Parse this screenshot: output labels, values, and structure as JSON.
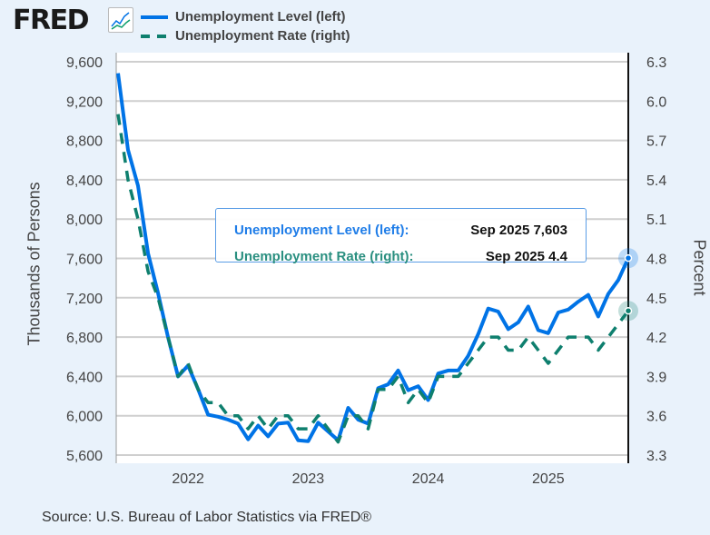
{
  "header": {
    "logo": "FRED",
    "logo_icon": "line-chart-icon"
  },
  "legend": [
    {
      "label": "Unemployment Level (left)",
      "color": "#0073e6",
      "style": "solid"
    },
    {
      "label": "Unemployment Rate (right)",
      "color": "#0e7f6e",
      "style": "dashed"
    }
  ],
  "tooltip": {
    "rows": [
      {
        "label": "Unemployment Level (left):",
        "value": "Sep 2025 7,603"
      },
      {
        "label": "Unemployment Rate (right):",
        "value": "Sep 2025 4.4"
      }
    ]
  },
  "source": "Source: U.S. Bureau of Labor Statistics via FRED®",
  "chart_data": {
    "type": "line",
    "x_start": "2021-06",
    "x_end": "2025-09",
    "frequency": "monthly",
    "x_ticks": [
      "2022",
      "2023",
      "2024",
      "2025"
    ],
    "ylabel_left": "Thousands of Persons",
    "ylabel_right": "Percent",
    "ylim_left": [
      5600,
      9600
    ],
    "ylim_right": [
      3.3,
      6.3
    ],
    "yticks_left": [
      "5,600",
      "6,000",
      "6,400",
      "6,800",
      "7,200",
      "7,600",
      "8,000",
      "8,400",
      "8,800",
      "9,200",
      "9,600"
    ],
    "yticks_right": [
      "3.3",
      "3.6",
      "3.9",
      "4.2",
      "4.5",
      "4.8",
      "5.1",
      "5.4",
      "5.7",
      "6.0",
      "6.3"
    ],
    "grid": true,
    "legend_placement": "top-left",
    "series": [
      {
        "name": "Unemployment Level (left)",
        "axis": "left",
        "color": "#0073e6",
        "values": [
          9484,
          8703,
          8339,
          7650,
          7246,
          6797,
          6400,
          6510,
          6270,
          6010,
          5990,
          5960,
          5920,
          5760,
          5900,
          5790,
          5920,
          5930,
          5750,
          5740,
          5930,
          5840,
          5750,
          6080,
          5960,
          5920,
          6280,
          6320,
          6460,
          6260,
          6300,
          6160,
          6430,
          6460,
          6460,
          6610,
          6830,
          7090,
          7060,
          6880,
          6950,
          7110,
          6870,
          6840,
          7050,
          7080,
          7160,
          7230,
          7010,
          7240,
          7380,
          7603
        ]
      },
      {
        "name": "Unemployment Rate (right)",
        "axis": "right",
        "color": "#0e7f6e",
        "values": [
          5.9,
          5.4,
          5.1,
          4.7,
          4.5,
          4.2,
          3.9,
          4.0,
          3.8,
          3.7,
          3.7,
          3.6,
          3.6,
          3.5,
          3.6,
          3.5,
          3.6,
          3.6,
          3.5,
          3.5,
          3.6,
          3.5,
          3.4,
          3.6,
          3.6,
          3.5,
          3.8,
          3.8,
          3.9,
          3.7,
          3.8,
          3.7,
          3.9,
          3.9,
          3.9,
          4.0,
          4.1,
          4.2,
          4.2,
          4.1,
          4.1,
          4.2,
          4.1,
          4.0,
          4.1,
          4.2,
          4.2,
          4.2,
          4.1,
          4.2,
          4.3,
          4.4
        ]
      }
    ]
  }
}
